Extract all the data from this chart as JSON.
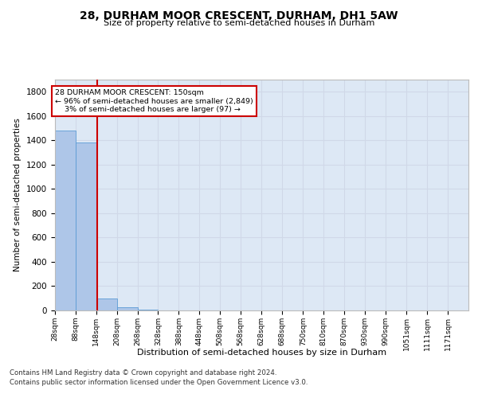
{
  "title": "28, DURHAM MOOR CRESCENT, DURHAM, DH1 5AW",
  "subtitle": "Size of property relative to semi-detached houses in Durham",
  "xlabel": "Distribution of semi-detached houses by size in Durham",
  "ylabel": "Number of semi-detached properties",
  "property_size": 150,
  "property_label": "28 DURHAM MOOR CRESCENT: 150sqm",
  "pct_smaller": 96,
  "n_smaller": 2849,
  "pct_larger": 3,
  "n_larger": 97,
  "bin_edges": [
    28,
    88,
    148,
    208,
    268,
    328,
    388,
    448,
    508,
    568,
    628,
    688,
    750,
    810,
    870,
    930,
    990,
    1051,
    1111,
    1171,
    1231
  ],
  "bin_heights": [
    1480,
    1380,
    97,
    25,
    5,
    2,
    2,
    1,
    1,
    1,
    0,
    1,
    0,
    0,
    0,
    0,
    0,
    0,
    0,
    0
  ],
  "bar_color": "#aec6e8",
  "bar_edge_color": "#5b9bd5",
  "red_line_color": "#cc0000",
  "annotation_box_color": "#cc0000",
  "grid_color": "#d0d8e8",
  "background_color": "#dde8f5",
  "ylim": [
    0,
    1900
  ],
  "yticks": [
    0,
    200,
    400,
    600,
    800,
    1000,
    1200,
    1400,
    1600,
    1800
  ],
  "footer_line1": "Contains HM Land Registry data © Crown copyright and database right 2024.",
  "footer_line2": "Contains public sector information licensed under the Open Government Licence v3.0."
}
